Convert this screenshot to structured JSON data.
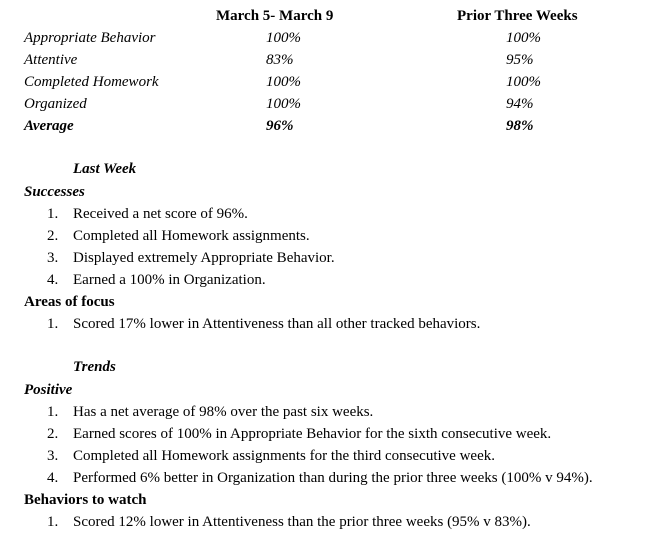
{
  "table": {
    "col1_header": "March 5- March 9",
    "col2_header": "Prior Three Weeks",
    "rows": [
      {
        "label": "Appropriate Behavior",
        "current": "100%",
        "prior": "100%"
      },
      {
        "label": "Attentive",
        "current": "83%",
        "prior": "95%"
      },
      {
        "label": "Completed Homework",
        "current": "100%",
        "prior": "100%"
      },
      {
        "label": "Organized",
        "current": "100%",
        "prior": "94%"
      },
      {
        "label": "Average",
        "current": "96%",
        "prior": "98%"
      }
    ]
  },
  "last_week": {
    "heading": "Last Week",
    "successes_heading": "Successes",
    "successes": [
      "Received a net score of 96%.",
      "Completed all Homework assignments.",
      "Displayed extremely Appropriate Behavior.",
      "Earned a 100% in Organization."
    ],
    "focus_heading": "Areas of focus",
    "focus": [
      "Scored 17% lower in Attentiveness than all other tracked behaviors."
    ]
  },
  "trends": {
    "heading": "Trends",
    "positive_heading": "Positive",
    "positive": [
      "Has a net average of 98% over the past six weeks.",
      "Earned scores of 100% in Appropriate Behavior for the sixth consecutive week.",
      "Completed all Homework assignments for the third consecutive week.",
      "Performed 6% better in Organization than during the prior three weeks (100% v 94%)."
    ],
    "watch_heading": "Behaviors to watch",
    "watch": [
      "Scored 12% lower in Attentiveness than the prior three weeks (95% v 83%)."
    ]
  }
}
